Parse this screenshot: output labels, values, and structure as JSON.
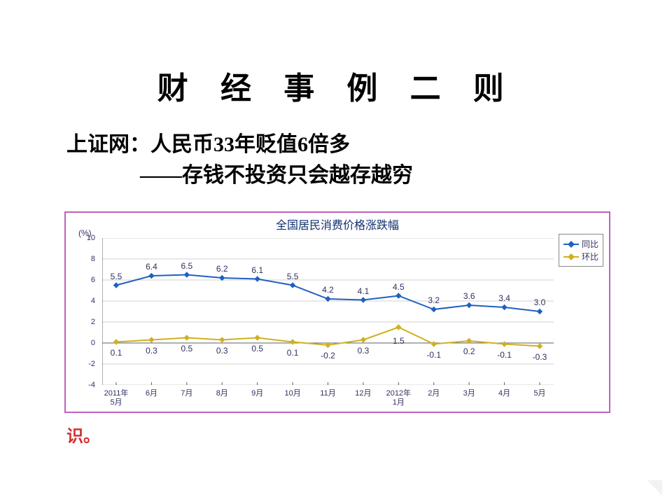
{
  "main_title": "财 经 事 例 二 则",
  "main_title_fontsize": 44,
  "main_title_color": "#000000",
  "headline_line1": "上证网：人民币33年贬值6倍多",
  "headline_line2": "——存钱不投资只会越存越穷",
  "headline_fontsize": 30,
  "headline_color": "#000000",
  "shi_text": "识。",
  "shi_color": "#d03030",
  "shi_fontsize": 24,
  "chart": {
    "type": "line",
    "title": "全国居民消费价格涨跌幅",
    "title_color": "#103070",
    "title_fontsize": 16,
    "y_unit": "(%)",
    "y_unit_fontsize": 12,
    "ylim": [
      -4,
      10
    ],
    "ytick_step": 2,
    "tick_label_color": "#303060",
    "tick_fontsize": 11,
    "grid_color": "#d0d0d0",
    "axis_color": "#606060",
    "border_color": "#c060c0",
    "background_color": "#ffffff",
    "categories": [
      "2011年\n5月",
      "6月",
      "7月",
      "8月",
      "9月",
      "10月",
      "11月",
      "12月",
      "2012年\n1月",
      "2月",
      "3月",
      "4月",
      "5月"
    ],
    "series": [
      {
        "name": "同比",
        "color": "#2060c0",
        "line_width": 2,
        "marker": "diamond",
        "marker_size": 7,
        "values": [
          5.5,
          6.4,
          6.5,
          6.2,
          6.1,
          5.5,
          4.2,
          4.1,
          4.5,
          3.2,
          3.6,
          3.4,
          3.0
        ],
        "label_offset": "above"
      },
      {
        "name": "环比",
        "color": "#d0b020",
        "line_width": 2,
        "marker": "diamond",
        "marker_size": 7,
        "values": [
          0.1,
          0.3,
          0.5,
          0.3,
          0.5,
          0.1,
          -0.2,
          0.3,
          1.5,
          -0.1,
          0.2,
          -0.1,
          -0.3
        ],
        "label_offset": "below"
      }
    ],
    "data_label_color": "#303060",
    "data_label_fontsize": 12,
    "legend": {
      "position": "top-right",
      "border_color": "#888888",
      "fontsize": 12
    }
  }
}
